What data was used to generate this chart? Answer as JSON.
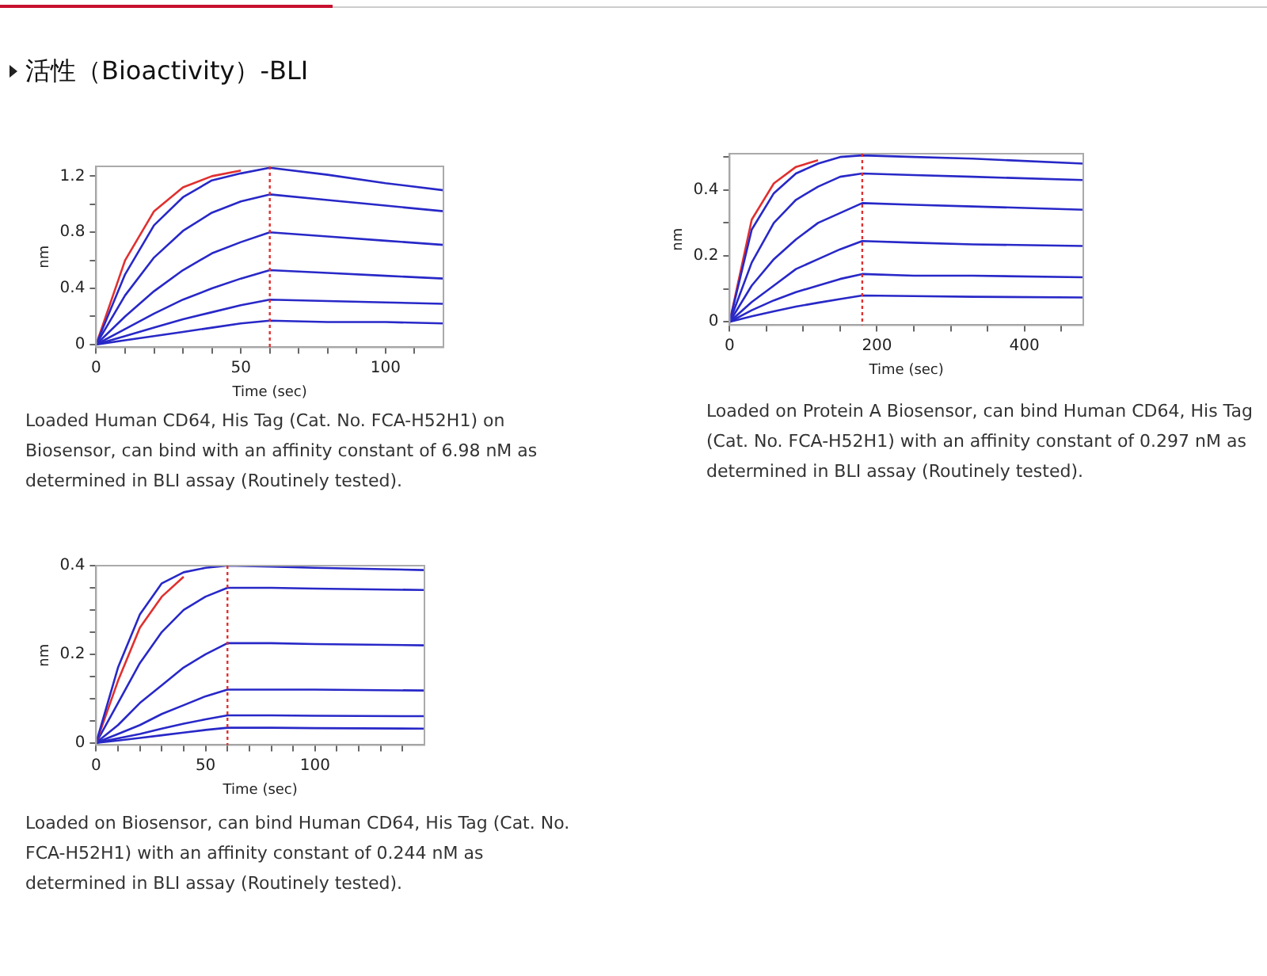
{
  "chart_data": [
    {
      "type": "line",
      "title": "活性（Bioactivity）-BLI",
      "xlabel": "Time (sec)",
      "ylabel": "nm",
      "marker": "none",
      "line_style": "solid",
      "x": [
        0,
        10,
        20,
        30,
        40,
        50,
        60,
        80,
        100,
        120
      ],
      "xlim": [
        0,
        120
      ],
      "xticks": [
        0,
        {
          "value": 10,
          "label": null
        },
        {
          "value": 20,
          "label": null
        },
        {
          "value": 30,
          "label": null
        },
        {
          "value": 40,
          "label": null
        },
        50,
        {
          "value": 60,
          "label": null
        },
        {
          "value": 70,
          "label": null
        },
        {
          "value": 80,
          "label": null
        },
        {
          "value": 90,
          "label": null
        },
        100,
        {
          "value": 110,
          "label": null
        }
      ],
      "ylim": [
        -0.02,
        1.27
      ],
      "yticks": [
        0,
        {
          "value": 0.2,
          "label": null
        },
        0.4,
        {
          "value": 0.6,
          "label": null
        },
        0.8,
        {
          "value": 1.0,
          "label": null
        },
        1.2
      ],
      "ref_lines": [
        {
          "axis": "x",
          "value": 60,
          "color": "#e03030",
          "line_style": "dotted"
        }
      ],
      "series": [
        {
          "color": "#2828c8",
          "values": [
            0,
            0.5,
            0.85,
            1.05,
            1.17,
            1.22,
            1.26,
            1.21,
            1.15,
            1.1
          ]
        },
        {
          "color": "#e03030",
          "values": [
            0,
            0.6,
            0.95,
            1.12,
            1.2,
            1.24,
            null,
            null,
            null,
            null
          ]
        },
        {
          "color": "#2828c8",
          "values": [
            0,
            0.35,
            0.62,
            0.81,
            0.94,
            1.02,
            1.07,
            1.03,
            0.99,
            0.95
          ]
        },
        {
          "color": "#2828c8",
          "values": [
            0,
            0.2,
            0.38,
            0.53,
            0.65,
            0.73,
            0.8,
            0.77,
            0.74,
            0.71
          ]
        },
        {
          "color": "#2828c8",
          "values": [
            0,
            0.11,
            0.22,
            0.32,
            0.4,
            0.47,
            0.53,
            0.51,
            0.49,
            0.47
          ]
        },
        {
          "color": "#2828c8",
          "values": [
            0,
            0.06,
            0.12,
            0.18,
            0.23,
            0.28,
            0.32,
            0.31,
            0.3,
            0.29
          ]
        },
        {
          "color": "#2828c8",
          "values": [
            0,
            0.03,
            0.06,
            0.09,
            0.12,
            0.15,
            0.17,
            0.16,
            0.16,
            0.15
          ]
        }
      ],
      "annotations": [
        "Loaded Human CD64, His Tag (Cat. No. FCA-H52H1) on Biosensor, can bind with an affinity constant of 6.98 nM as determined in BLI assay (Routinely tested)."
      ]
    },
    {
      "type": "line",
      "xlabel": "Time (sec)",
      "ylabel": "nm",
      "marker": "none",
      "line_style": "solid",
      "x": [
        0,
        30,
        60,
        90,
        120,
        150,
        180,
        250,
        330,
        480
      ],
      "xlim": [
        0,
        480
      ],
      "xticks": [
        0,
        {
          "value": 50,
          "label": null
        },
        {
          "value": 100,
          "label": null
        },
        {
          "value": 150,
          "label": null
        },
        200,
        {
          "value": 250,
          "label": null
        },
        {
          "value": 300,
          "label": null
        },
        {
          "value": 350,
          "label": null
        },
        400,
        {
          "value": 450,
          "label": null
        }
      ],
      "ylim": [
        -0.01,
        0.51
      ],
      "yticks": [
        0,
        {
          "value": 0.1,
          "label": null
        },
        0.2,
        {
          "value": 0.3,
          "label": null
        },
        0.4,
        {
          "value": 0.5,
          "label": null
        }
      ],
      "ref_lines": [
        {
          "axis": "x",
          "value": 180,
          "color": "#e03030",
          "line_style": "dotted"
        }
      ],
      "series": [
        {
          "color": "#2828c8",
          "values": [
            0,
            0.28,
            0.39,
            0.45,
            0.48,
            0.5,
            0.505,
            0.5,
            0.495,
            0.48
          ]
        },
        {
          "color": "#e03030",
          "values": [
            0,
            0.31,
            0.42,
            0.47,
            0.49,
            null,
            null,
            null,
            null,
            null
          ]
        },
        {
          "color": "#2828c8",
          "values": [
            0,
            0.18,
            0.3,
            0.37,
            0.41,
            0.44,
            0.45,
            0.445,
            0.44,
            0.43
          ]
        },
        {
          "color": "#2828c8",
          "values": [
            0,
            0.11,
            0.19,
            0.25,
            0.3,
            0.33,
            0.36,
            0.355,
            0.35,
            0.34
          ]
        },
        {
          "color": "#2828c8",
          "values": [
            0,
            0.06,
            0.11,
            0.16,
            0.19,
            0.22,
            0.245,
            0.24,
            0.235,
            0.23
          ]
        },
        {
          "color": "#2828c8",
          "values": [
            0,
            0.035,
            0.065,
            0.09,
            0.11,
            0.13,
            0.145,
            0.14,
            0.14,
            0.135
          ]
        },
        {
          "color": "#2828c8",
          "values": [
            0,
            0.017,
            0.032,
            0.046,
            0.058,
            0.069,
            0.08,
            0.078,
            0.076,
            0.074
          ]
        }
      ],
      "annotations": [
        "Loaded on Protein A Biosensor, can bind Human CD64, His Tag (Cat. No. FCA-H52H1) with an affinity constant of 0.297 nM as determined in BLI assay (Routinely tested)."
      ]
    },
    {
      "type": "line",
      "xlabel": "Time (sec)",
      "ylabel": "nm",
      "marker": "none",
      "line_style": "solid",
      "x": [
        0,
        10,
        20,
        30,
        40,
        50,
        60,
        80,
        100,
        150
      ],
      "xlim": [
        0,
        150
      ],
      "xticks": [
        0,
        {
          "value": 10,
          "label": null
        },
        {
          "value": 20,
          "label": null
        },
        {
          "value": 30,
          "label": null
        },
        {
          "value": 40,
          "label": null
        },
        50,
        {
          "value": 60,
          "label": null
        },
        {
          "value": 70,
          "label": null
        },
        {
          "value": 80,
          "label": null
        },
        {
          "value": 90,
          "label": null
        },
        100,
        {
          "value": 110,
          "label": null
        },
        {
          "value": 120,
          "label": null
        },
        {
          "value": 130,
          "label": null
        },
        {
          "value": 140,
          "label": null
        }
      ],
      "ylim": [
        -0.005,
        0.4
      ],
      "yticks": [
        0,
        {
          "value": 0.05,
          "label": null
        },
        {
          "value": 0.1,
          "label": null
        },
        {
          "value": 0.15,
          "label": null
        },
        0.2,
        {
          "value": 0.25,
          "label": null
        },
        {
          "value": 0.3,
          "label": null
        },
        {
          "value": 0.35,
          "label": null
        },
        0.4
      ],
      "ref_lines": [
        {
          "axis": "x",
          "value": 60,
          "color": "#e03030",
          "line_style": "dotted"
        }
      ],
      "series": [
        {
          "color": "#2828c8",
          "values": [
            0,
            0.17,
            0.29,
            0.36,
            0.385,
            0.395,
            0.4,
            0.398,
            0.395,
            0.39
          ]
        },
        {
          "color": "#e03030",
          "values": [
            0,
            0.14,
            0.26,
            0.33,
            0.375,
            null,
            null,
            null,
            null,
            null
          ]
        },
        {
          "color": "#2828c8",
          "values": [
            0,
            0.09,
            0.18,
            0.25,
            0.3,
            0.33,
            0.35,
            0.35,
            0.348,
            0.345
          ]
        },
        {
          "color": "#2828c8",
          "values": [
            0,
            0.04,
            0.09,
            0.13,
            0.17,
            0.2,
            0.225,
            0.225,
            0.223,
            0.22
          ]
        },
        {
          "color": "#2828c8",
          "values": [
            0,
            0.02,
            0.04,
            0.065,
            0.085,
            0.105,
            0.12,
            0.12,
            0.12,
            0.118
          ]
        },
        {
          "color": "#2828c8",
          "values": [
            0,
            0.01,
            0.02,
            0.032,
            0.043,
            0.053,
            0.062,
            0.062,
            0.061,
            0.06
          ]
        },
        {
          "color": "#2828c8",
          "values": [
            0,
            0.005,
            0.011,
            0.017,
            0.023,
            0.029,
            0.034,
            0.034,
            0.033,
            0.032
          ]
        }
      ],
      "annotations": [
        "Loaded on Biosensor, can bind Human CD64, His Tag (Cat. No. FCA-H52H1) with an affinity constant of 0.244 nM as determined in BLI assay (Routinely tested)."
      ]
    }
  ]
}
